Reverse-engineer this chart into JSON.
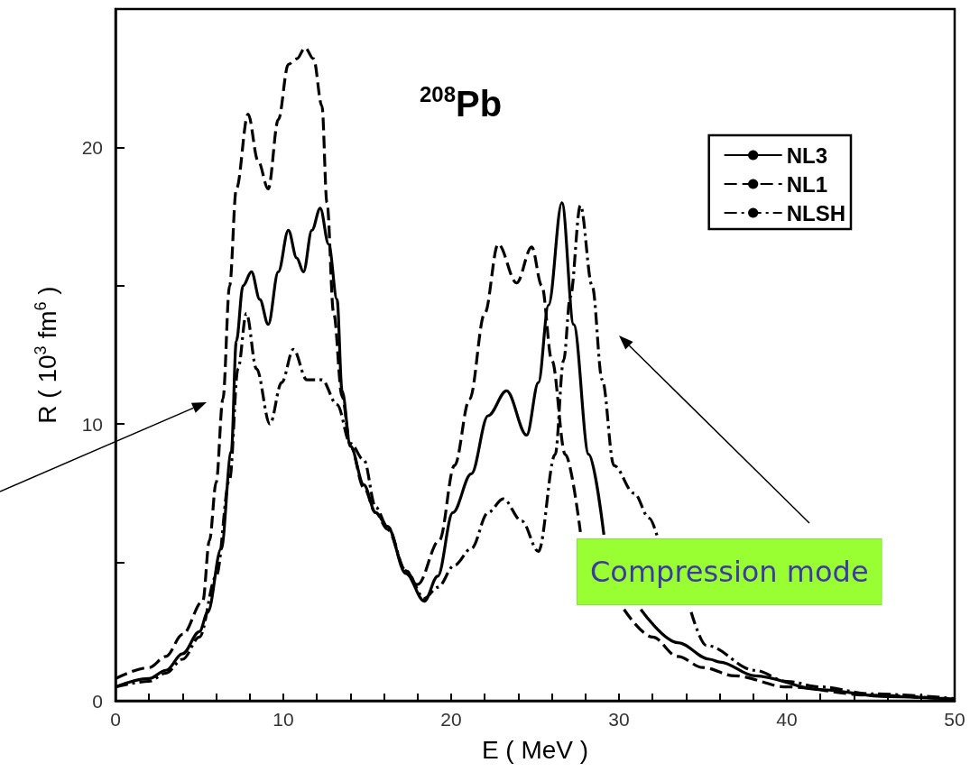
{
  "chart_data": {
    "type": "line",
    "xlabel": "E ( MeV )",
    "ylabel": "R ( 10$^{3}$ fm$^{6}$ )",
    "annotations": [
      "$^{208}$Pb",
      "Compression mode"
    ],
    "xlim": [
      0,
      50
    ],
    "ylim": [
      0,
      25
    ],
    "xticks": [
      0,
      {
        "value": 2,
        "label": null
      },
      {
        "value": 4,
        "label": null
      },
      {
        "value": 6,
        "label": null
      },
      {
        "value": 8,
        "label": null
      },
      10,
      {
        "value": 12,
        "label": null
      },
      {
        "value": 14,
        "label": null
      },
      {
        "value": 16,
        "label": null
      },
      {
        "value": 18,
        "label": null
      },
      20,
      {
        "value": 22,
        "label": null
      },
      {
        "value": 24,
        "label": null
      },
      {
        "value": 26,
        "label": null
      },
      {
        "value": 28,
        "label": null
      },
      30,
      {
        "value": 32,
        "label": null
      },
      {
        "value": 34,
        "label": null
      },
      {
        "value": 36,
        "label": null
      },
      {
        "value": 38,
        "label": null
      },
      40,
      {
        "value": 42,
        "label": null
      },
      {
        "value": 44,
        "label": null
      },
      {
        "value": 46,
        "label": null
      },
      {
        "value": 48,
        "label": null
      },
      50
    ],
    "yticks": [
      0,
      {
        "value": 5,
        "label": null
      },
      10,
      {
        "value": 15,
        "label": null
      },
      20
    ],
    "grid": false,
    "legend": "top right",
    "marker": "none",
    "series": [
      {
        "name": "NL3",
        "color": "#000000",
        "line_style": "solid",
        "x": [
          0,
          2,
          3,
          4,
          5,
          5.5,
          6.3,
          6.9,
          7.2,
          7.6,
          8.1,
          8.6,
          9.1,
          9.7,
          10.3,
          10.8,
          11.2,
          11.7,
          12.2,
          12.7,
          13.2,
          13.5,
          14,
          14.8,
          15.5,
          16.2,
          17.3,
          18.4,
          19.2,
          20.1,
          21.2,
          22.2,
          23.3,
          24.5,
          25.2,
          25.8,
          26.6,
          27.3,
          28.2,
          29.1,
          30,
          31.3,
          33.5,
          35.4,
          36,
          38.1,
          42,
          46,
          50
        ],
        "values": [
          0.5,
          0.8,
          1.1,
          1.7,
          2.5,
          3.2,
          5.5,
          9,
          13,
          15,
          15.5,
          14.5,
          13.6,
          15.5,
          17,
          16,
          15.5,
          17,
          17.8,
          16.5,
          14.5,
          11.2,
          9.2,
          7.8,
          6.8,
          6.3,
          4.6,
          3.6,
          4.5,
          6.8,
          8.2,
          10.3,
          11.2,
          9.6,
          11.5,
          14.3,
          18,
          13.6,
          8.9,
          6.0,
          null,
          3.3,
          2.1,
          1.5,
          1.4,
          0.9,
          0.4,
          0.15,
          0.05
        ]
      },
      {
        "name": "NL1",
        "color": "#000000",
        "line_style": "dashed",
        "x": [
          0,
          2,
          3,
          4,
          5.2,
          5.6,
          6,
          6.4,
          6.8,
          7.2,
          7.9,
          8.5,
          9.1,
          9.7,
          10.3,
          10.8,
          11.3,
          11.8,
          12.3,
          12.6,
          13,
          13.5,
          14,
          14.8,
          15.5,
          16.2,
          17.3,
          18,
          19.3,
          20.2,
          21.1,
          22,
          22.8,
          23.9,
          24.8,
          25.4,
          26,
          26.8,
          27.7,
          29,
          30.3,
          32,
          33.5,
          35,
          36.9,
          40,
          45,
          50
        ],
        "values": [
          0.8,
          1.2,
          1.6,
          2.4,
          3.6,
          5.8,
          7.9,
          10.9,
          15,
          18.5,
          21.2,
          19.5,
          18.5,
          21,
          23,
          23.2,
          23.6,
          23.2,
          21.5,
          18,
          14,
          11,
          9.2,
          7.7,
          6.8,
          6.2,
          4.7,
          4.2,
          5.8,
          8.5,
          10.9,
          14,
          16.5,
          15.1,
          16.4,
          15,
          12.3,
          8.9,
          6.1,
          null,
          3.3,
          2.3,
          1.6,
          1.2,
          0.9,
          0.5,
          0.2,
          0.05
        ]
      },
      {
        "name": "NLSH",
        "color": "#000000",
        "line_style": "dashdot",
        "x": [
          0,
          2,
          3,
          4,
          5,
          6,
          6.8,
          7.3,
          7.8,
          8.4,
          9.2,
          9.9,
          10.6,
          11.4,
          12.3,
          13.2,
          14,
          14.8,
          15.5,
          16.2,
          17.3,
          18.4,
          19.2,
          20.2,
          21.2,
          22.2,
          23.1,
          24.2,
          25.2,
          26.2,
          26.7,
          27.1,
          27.7,
          28.4,
          29,
          29.7,
          30.9,
          31.8,
          32.3,
          33,
          34.3,
          35.2,
          38.1,
          40,
          42,
          45,
          50
        ],
        "values": [
          0.5,
          0.7,
          1.0,
          1.5,
          2.3,
          4.5,
          8,
          12,
          14,
          12,
          10,
          11.5,
          12.7,
          11.6,
          11.6,
          10.7,
          9.3,
          8.7,
          7,
          6.3,
          4.7,
          3.7,
          4.1,
          4.9,
          5.5,
          6.8,
          7.3,
          6.5,
          5.4,
          8.9,
          12.3,
          14.6,
          17.9,
          15,
          11.6,
          8.5,
          7.5,
          6.6,
          5.9,
          null,
          3.2,
          2.0,
          1.1,
          0.7,
          0.5,
          0.25,
          0.08
        ]
      }
    ]
  }
}
